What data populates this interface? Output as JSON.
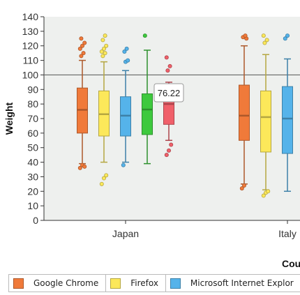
{
  "chart_data": {
    "type": "box",
    "ylabel": "Weight",
    "xlabel": "Cou",
    "ylim": [
      0,
      140
    ],
    "y_ticks": [
      0,
      10,
      20,
      30,
      40,
      50,
      60,
      70,
      80,
      90,
      100,
      110,
      120,
      130,
      140
    ],
    "reference_line": 100,
    "categories": [
      "Japan",
      "Italy"
    ],
    "tooltip": {
      "text": "76.22",
      "category": "Japan",
      "series": 4
    },
    "series": [
      {
        "name": "Google Chrome",
        "color": "#f07a3a",
        "boxes": [
          {
            "min": 39,
            "q1": 60,
            "median": 76,
            "q3": 91,
            "max": 110,
            "outliers": [
              36,
              38,
              37,
              113,
              115,
              118,
              120,
              122,
              125
            ]
          },
          {
            "min": 25,
            "q1": 55,
            "median": 72,
            "q3": 93,
            "max": 120,
            "outliers": [
              22,
              24,
              125,
              126,
              127
            ]
          }
        ]
      },
      {
        "name": "Firefox",
        "color": "#fce85a",
        "boxes": [
          {
            "min": 40,
            "q1": 58,
            "median": 73,
            "q3": 89,
            "max": 109,
            "outliers": [
              25,
              29,
              31,
              113,
              115,
              116,
              118,
              120,
              124,
              127
            ]
          },
          {
            "min": 21,
            "q1": 47,
            "median": 71,
            "q3": 89,
            "max": 114,
            "outliers": [
              17,
              19,
              20,
              122,
              124,
              127
            ]
          }
        ]
      },
      {
        "name": "Microsoft Internet Explor",
        "color": "#55b3ea",
        "boxes": [
          {
            "min": 40,
            "q1": 58,
            "median": 72,
            "q3": 85,
            "max": 103,
            "outliers": [
              38,
              109,
              110,
              116,
              118
            ]
          },
          {
            "min": 20,
            "q1": 46,
            "median": 70,
            "q3": 92,
            "max": 111,
            "outliers": [
              125,
              127
            ]
          }
        ]
      },
      {
        "color": "#3ec93e",
        "boxes": [
          {
            "min": 39,
            "q1": 59,
            "median": 76.22,
            "q3": 87,
            "max": 117,
            "outliers": [
              127
            ]
          }
        ]
      },
      {
        "color": "#f0606a",
        "boxes": [
          {
            "min": 55,
            "q1": 66,
            "median": 80,
            "q3": 87,
            "max": 95,
            "outliers": [
              45,
              48,
              52,
              103,
              106,
              112
            ]
          }
        ]
      }
    ]
  }
}
